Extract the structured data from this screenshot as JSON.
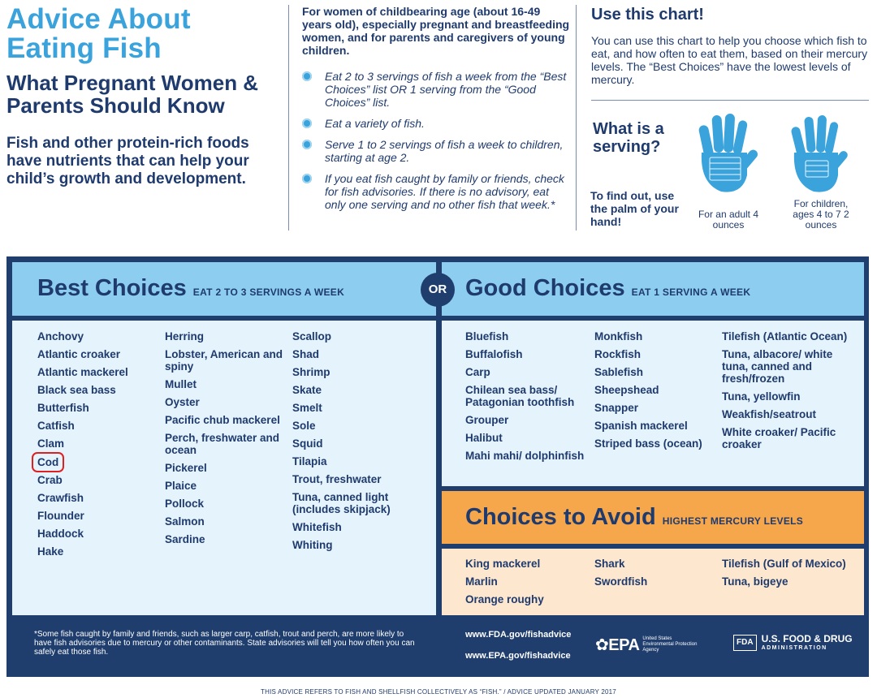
{
  "header": {
    "title": "Advice About Eating Fish",
    "subtitle": "What Pregnant Women & Parents Should Know",
    "intro": "Fish and other protein-rich foods have nutrients that can help your child’s growth and development."
  },
  "audience": {
    "intro": "For women of childbearing age (about 16-49 years old), especially pregnant and breastfeeding women, and for parents and caregivers of young children.",
    "bullets": [
      "Eat 2 to 3 servings of fish a week from the “Best Choices” list OR 1 serving from the “Good Choices” list.",
      "Eat a variety of fish.",
      "Serve 1 to 2 servings of fish a week to children, starting at age 2.",
      "If you eat fish caught by family or friends, check for fish advisories. If there is no advisory, eat only one serving and no other fish that week.*"
    ]
  },
  "chart_info": {
    "title": "Use this chart!",
    "description": "You can use this chart to help you choose which fish to eat, and how often to eat them, based on their mercury levels. The “Best Choices” have the lowest levels of mercury."
  },
  "serving": {
    "question": "What is a serving?",
    "howto": "To find out, use the palm of your hand!",
    "adult_caption": "For an adult 4 ounces",
    "child_caption": "For children, ages 4 to 7 2 ounces"
  },
  "best": {
    "title": "Best Choices",
    "subtitle": "EAT 2 TO 3 SERVINGS A WEEK",
    "col1": [
      "Anchovy",
      "Atlantic croaker",
      "Atlantic mackerel",
      "Black sea bass",
      "Butterfish",
      "Catfish",
      "Clam",
      "Cod",
      "Crab",
      "Crawfish",
      "Flounder",
      "Haddock",
      "Hake"
    ],
    "col2": [
      "Herring",
      "Lobster, American and spiny",
      "Mullet",
      "Oyster",
      "Pacific chub mackerel",
      "Perch, freshwater and ocean",
      "Pickerel",
      "Plaice",
      "Pollock",
      "Salmon",
      "Sardine"
    ],
    "col3": [
      "Scallop",
      "Shad",
      "Shrimp",
      "Skate",
      "Smelt",
      "Sole",
      "Squid",
      "Tilapia",
      "Trout, freshwater",
      "Tuna, canned light (includes skipjack)",
      "Whitefish",
      "Whiting"
    ]
  },
  "or_label": "OR",
  "good": {
    "title": "Good Choices",
    "subtitle": "EAT 1 SERVING A WEEK",
    "col1": [
      "Bluefish",
      "Buffalofish",
      "Carp",
      "Chilean sea bass/ Patagonian toothfish",
      "Grouper",
      "Halibut",
      "Mahi mahi/ dolphinfish"
    ],
    "col2": [
      "Monkfish",
      "Rockfish",
      "Sablefish",
      "Sheepshead",
      "Snapper",
      "Spanish mackerel",
      "Striped bass (ocean)"
    ],
    "col3": [
      "Tilefish (Atlantic Ocean)",
      "Tuna, albacore/ white tuna, canned and fresh/frozen",
      "Tuna, yellowfin",
      "Weakfish/seatrout",
      "White croaker/ Pacific croaker"
    ]
  },
  "avoid": {
    "title": "Choices to Avoid",
    "subtitle": "HIGHEST MERCURY LEVELS",
    "col1": [
      "King mackerel",
      "Marlin",
      "Orange roughy"
    ],
    "col2": [
      "Shark",
      "Swordfish"
    ],
    "col3": [
      "Tilefish (Gulf of Mexico)",
      "Tuna, bigeye"
    ]
  },
  "footer": {
    "footnote": "*Some fish caught by family and friends, such as larger carp, catfish, trout and perch, are more likely to have fish advisories due to mercury or other contaminants. State advisories will tell you how often you can safely eat those fish.",
    "link1": "www.FDA.gov/fishadvice",
    "link2": "www.EPA.gov/fishadvice",
    "epa_logo": "EPA",
    "epa_text": "United States Environmental Protection Agency",
    "fda_box": "FDA",
    "fda_name": "U.S. FOOD & DRUG",
    "fda_admin": "ADMINISTRATION",
    "bottom_note": "THIS ADVICE REFERS TO FISH AND SHELLFISH COLLECTIVELY AS “FISH.” / ADVICE UPDATED JANUARY 2017"
  },
  "highlight": "Cod",
  "colors": {
    "navy": "#1f3e6e",
    "light_blue_header": "#8ccdf0",
    "pale_blue_body": "#e4f3fc",
    "avoid_orange": "#f6a64b",
    "avoid_peach": "#fde8cf",
    "title_blue": "#3aa3dc",
    "highlight_red": "#e02020"
  }
}
